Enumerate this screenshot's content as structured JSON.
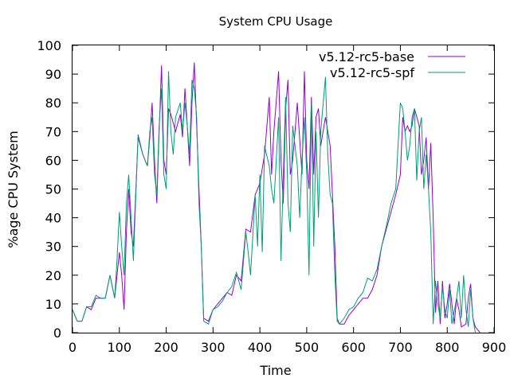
{
  "chart_data": {
    "type": "line",
    "title": "System CPU Usage",
    "xlabel": "Time",
    "ylabel": "%age CPU System",
    "xlim": [
      0,
      900
    ],
    "ylim": [
      0,
      100
    ],
    "xticks": [
      0,
      100,
      200,
      300,
      400,
      500,
      600,
      700,
      800,
      900
    ],
    "yticks": [
      0,
      10,
      20,
      30,
      40,
      50,
      60,
      70,
      80,
      90,
      100
    ],
    "grid": false,
    "legend_position": "top-right",
    "series": [
      {
        "name": "v5.12-rc5-base",
        "color": "#9400d3",
        "points": [
          [
            0,
            8
          ],
          [
            10,
            4
          ],
          [
            20,
            4
          ],
          [
            30,
            9
          ],
          [
            40,
            8
          ],
          [
            50,
            12
          ],
          [
            60,
            12
          ],
          [
            70,
            12
          ],
          [
            80,
            20
          ],
          [
            90,
            12
          ],
          [
            100,
            28
          ],
          [
            105,
            20
          ],
          [
            110,
            8
          ],
          [
            115,
            35
          ],
          [
            120,
            50
          ],
          [
            125,
            35
          ],
          [
            130,
            30
          ],
          [
            140,
            68
          ],
          [
            150,
            62
          ],
          [
            160,
            58
          ],
          [
            165,
            68
          ],
          [
            170,
            80
          ],
          [
            175,
            60
          ],
          [
            180,
            45
          ],
          [
            185,
            70
          ],
          [
            190,
            93
          ],
          [
            195,
            60
          ],
          [
            200,
            55
          ],
          [
            205,
            78
          ],
          [
            210,
            76
          ],
          [
            220,
            70
          ],
          [
            230,
            76
          ],
          [
            235,
            68
          ],
          [
            240,
            85
          ],
          [
            245,
            72
          ],
          [
            250,
            58
          ],
          [
            255,
            80
          ],
          [
            260,
            94
          ],
          [
            265,
            72
          ],
          [
            270,
            50
          ],
          [
            275,
            30
          ],
          [
            280,
            5
          ],
          [
            290,
            4
          ],
          [
            300,
            8
          ],
          [
            310,
            10
          ],
          [
            320,
            12
          ],
          [
            330,
            14
          ],
          [
            340,
            13
          ],
          [
            350,
            20
          ],
          [
            360,
            18
          ],
          [
            370,
            36
          ],
          [
            380,
            35
          ],
          [
            390,
            48
          ],
          [
            400,
            52
          ],
          [
            410,
            62
          ],
          [
            420,
            82
          ],
          [
            425,
            55
          ],
          [
            430,
            70
          ],
          [
            440,
            91
          ],
          [
            445,
            60
          ],
          [
            450,
            45
          ],
          [
            455,
            78
          ],
          [
            460,
            88
          ],
          [
            465,
            55
          ],
          [
            470,
            60
          ],
          [
            480,
            80
          ],
          [
            490,
            55
          ],
          [
            495,
            91
          ],
          [
            500,
            60
          ],
          [
            505,
            50
          ],
          [
            510,
            82
          ],
          [
            515,
            55
          ],
          [
            520,
            75
          ],
          [
            525,
            78
          ],
          [
            530,
            65
          ],
          [
            540,
            75
          ],
          [
            550,
            65
          ],
          [
            560,
            30
          ],
          [
            565,
            5
          ],
          [
            570,
            3
          ],
          [
            580,
            3
          ],
          [
            590,
            6
          ],
          [
            600,
            8
          ],
          [
            610,
            10
          ],
          [
            620,
            12
          ],
          [
            630,
            12
          ],
          [
            640,
            15
          ],
          [
            650,
            20
          ],
          [
            660,
            30
          ],
          [
            670,
            36
          ],
          [
            680,
            42
          ],
          [
            690,
            48
          ],
          [
            700,
            55
          ],
          [
            705,
            75
          ],
          [
            710,
            70
          ],
          [
            715,
            72
          ],
          [
            720,
            70
          ],
          [
            725,
            72
          ],
          [
            730,
            78
          ],
          [
            740,
            72
          ],
          [
            745,
            55
          ],
          [
            750,
            60
          ],
          [
            755,
            68
          ],
          [
            760,
            50
          ],
          [
            765,
            66
          ],
          [
            770,
            40
          ],
          [
            775,
            7
          ],
          [
            780,
            18
          ],
          [
            785,
            3
          ],
          [
            790,
            18
          ],
          [
            795,
            5
          ],
          [
            800,
            10
          ],
          [
            805,
            17
          ],
          [
            810,
            10
          ],
          [
            815,
            3
          ],
          [
            820,
            12
          ],
          [
            825,
            8
          ],
          [
            830,
            2
          ],
          [
            840,
            3
          ],
          [
            845,
            12
          ],
          [
            850,
            17
          ],
          [
            855,
            5
          ],
          [
            860,
            2
          ],
          [
            870,
            0
          ]
        ]
      },
      {
        "name": "v5.12-rc5-spf",
        "color": "#009e73",
        "points": [
          [
            0,
            8
          ],
          [
            10,
            4
          ],
          [
            20,
            4
          ],
          [
            30,
            9
          ],
          [
            40,
            9
          ],
          [
            50,
            13
          ],
          [
            60,
            12
          ],
          [
            70,
            12
          ],
          [
            80,
            20
          ],
          [
            90,
            12
          ],
          [
            95,
            25
          ],
          [
            100,
            42
          ],
          [
            105,
            30
          ],
          [
            110,
            20
          ],
          [
            115,
            45
          ],
          [
            120,
            55
          ],
          [
            125,
            40
          ],
          [
            130,
            25
          ],
          [
            140,
            69
          ],
          [
            150,
            62
          ],
          [
            160,
            58
          ],
          [
            165,
            70
          ],
          [
            170,
            75
          ],
          [
            175,
            55
          ],
          [
            180,
            48
          ],
          [
            185,
            72
          ],
          [
            190,
            85
          ],
          [
            195,
            55
          ],
          [
            200,
            50
          ],
          [
            205,
            91
          ],
          [
            210,
            70
          ],
          [
            215,
            62
          ],
          [
            220,
            75
          ],
          [
            230,
            80
          ],
          [
            235,
            70
          ],
          [
            240,
            80
          ],
          [
            245,
            72
          ],
          [
            250,
            62
          ],
          [
            255,
            88
          ],
          [
            260,
            85
          ],
          [
            265,
            75
          ],
          [
            270,
            45
          ],
          [
            275,
            30
          ],
          [
            280,
            4
          ],
          [
            290,
            3
          ],
          [
            300,
            8
          ],
          [
            310,
            9
          ],
          [
            320,
            11
          ],
          [
            330,
            14
          ],
          [
            340,
            16
          ],
          [
            350,
            21
          ],
          [
            360,
            15
          ],
          [
            370,
            35
          ],
          [
            375,
            28
          ],
          [
            380,
            20
          ],
          [
            390,
            48
          ],
          [
            395,
            30
          ],
          [
            400,
            55
          ],
          [
            405,
            28
          ],
          [
            410,
            65
          ],
          [
            420,
            58
          ],
          [
            425,
            50
          ],
          [
            430,
            45
          ],
          [
            440,
            75
          ],
          [
            445,
            25
          ],
          [
            450,
            55
          ],
          [
            455,
            82
          ],
          [
            460,
            45
          ],
          [
            465,
            35
          ],
          [
            470,
            72
          ],
          [
            480,
            58
          ],
          [
            485,
            40
          ],
          [
            490,
            60
          ],
          [
            495,
            75
          ],
          [
            500,
            55
          ],
          [
            505,
            20
          ],
          [
            510,
            80
          ],
          [
            515,
            30
          ],
          [
            520,
            70
          ],
          [
            525,
            40
          ],
          [
            530,
            70
          ],
          [
            540,
            89
          ],
          [
            545,
            62
          ],
          [
            550,
            48
          ],
          [
            555,
            45
          ],
          [
            560,
            20
          ],
          [
            565,
            4
          ],
          [
            570,
            3
          ],
          [
            580,
            5
          ],
          [
            590,
            8
          ],
          [
            600,
            9
          ],
          [
            610,
            12
          ],
          [
            620,
            14
          ],
          [
            630,
            19
          ],
          [
            640,
            18
          ],
          [
            650,
            22
          ],
          [
            660,
            30
          ],
          [
            670,
            37
          ],
          [
            680,
            45
          ],
          [
            690,
            50
          ],
          [
            700,
            80
          ],
          [
            705,
            78
          ],
          [
            710,
            70
          ],
          [
            715,
            60
          ],
          [
            720,
            65
          ],
          [
            725,
            75
          ],
          [
            730,
            78
          ],
          [
            735,
            53
          ],
          [
            740,
            70
          ],
          [
            745,
            75
          ],
          [
            750,
            50
          ],
          [
            755,
            62
          ],
          [
            760,
            50
          ],
          [
            765,
            35
          ],
          [
            770,
            3
          ],
          [
            775,
            18
          ],
          [
            780,
            10
          ],
          [
            785,
            5
          ],
          [
            790,
            16
          ],
          [
            795,
            8
          ],
          [
            800,
            5
          ],
          [
            805,
            15
          ],
          [
            810,
            3
          ],
          [
            820,
            12
          ],
          [
            825,
            18
          ],
          [
            830,
            5
          ],
          [
            835,
            20
          ],
          [
            840,
            8
          ],
          [
            845,
            2
          ],
          [
            850,
            15
          ],
          [
            855,
            5
          ],
          [
            860,
            0
          ]
        ]
      }
    ]
  }
}
